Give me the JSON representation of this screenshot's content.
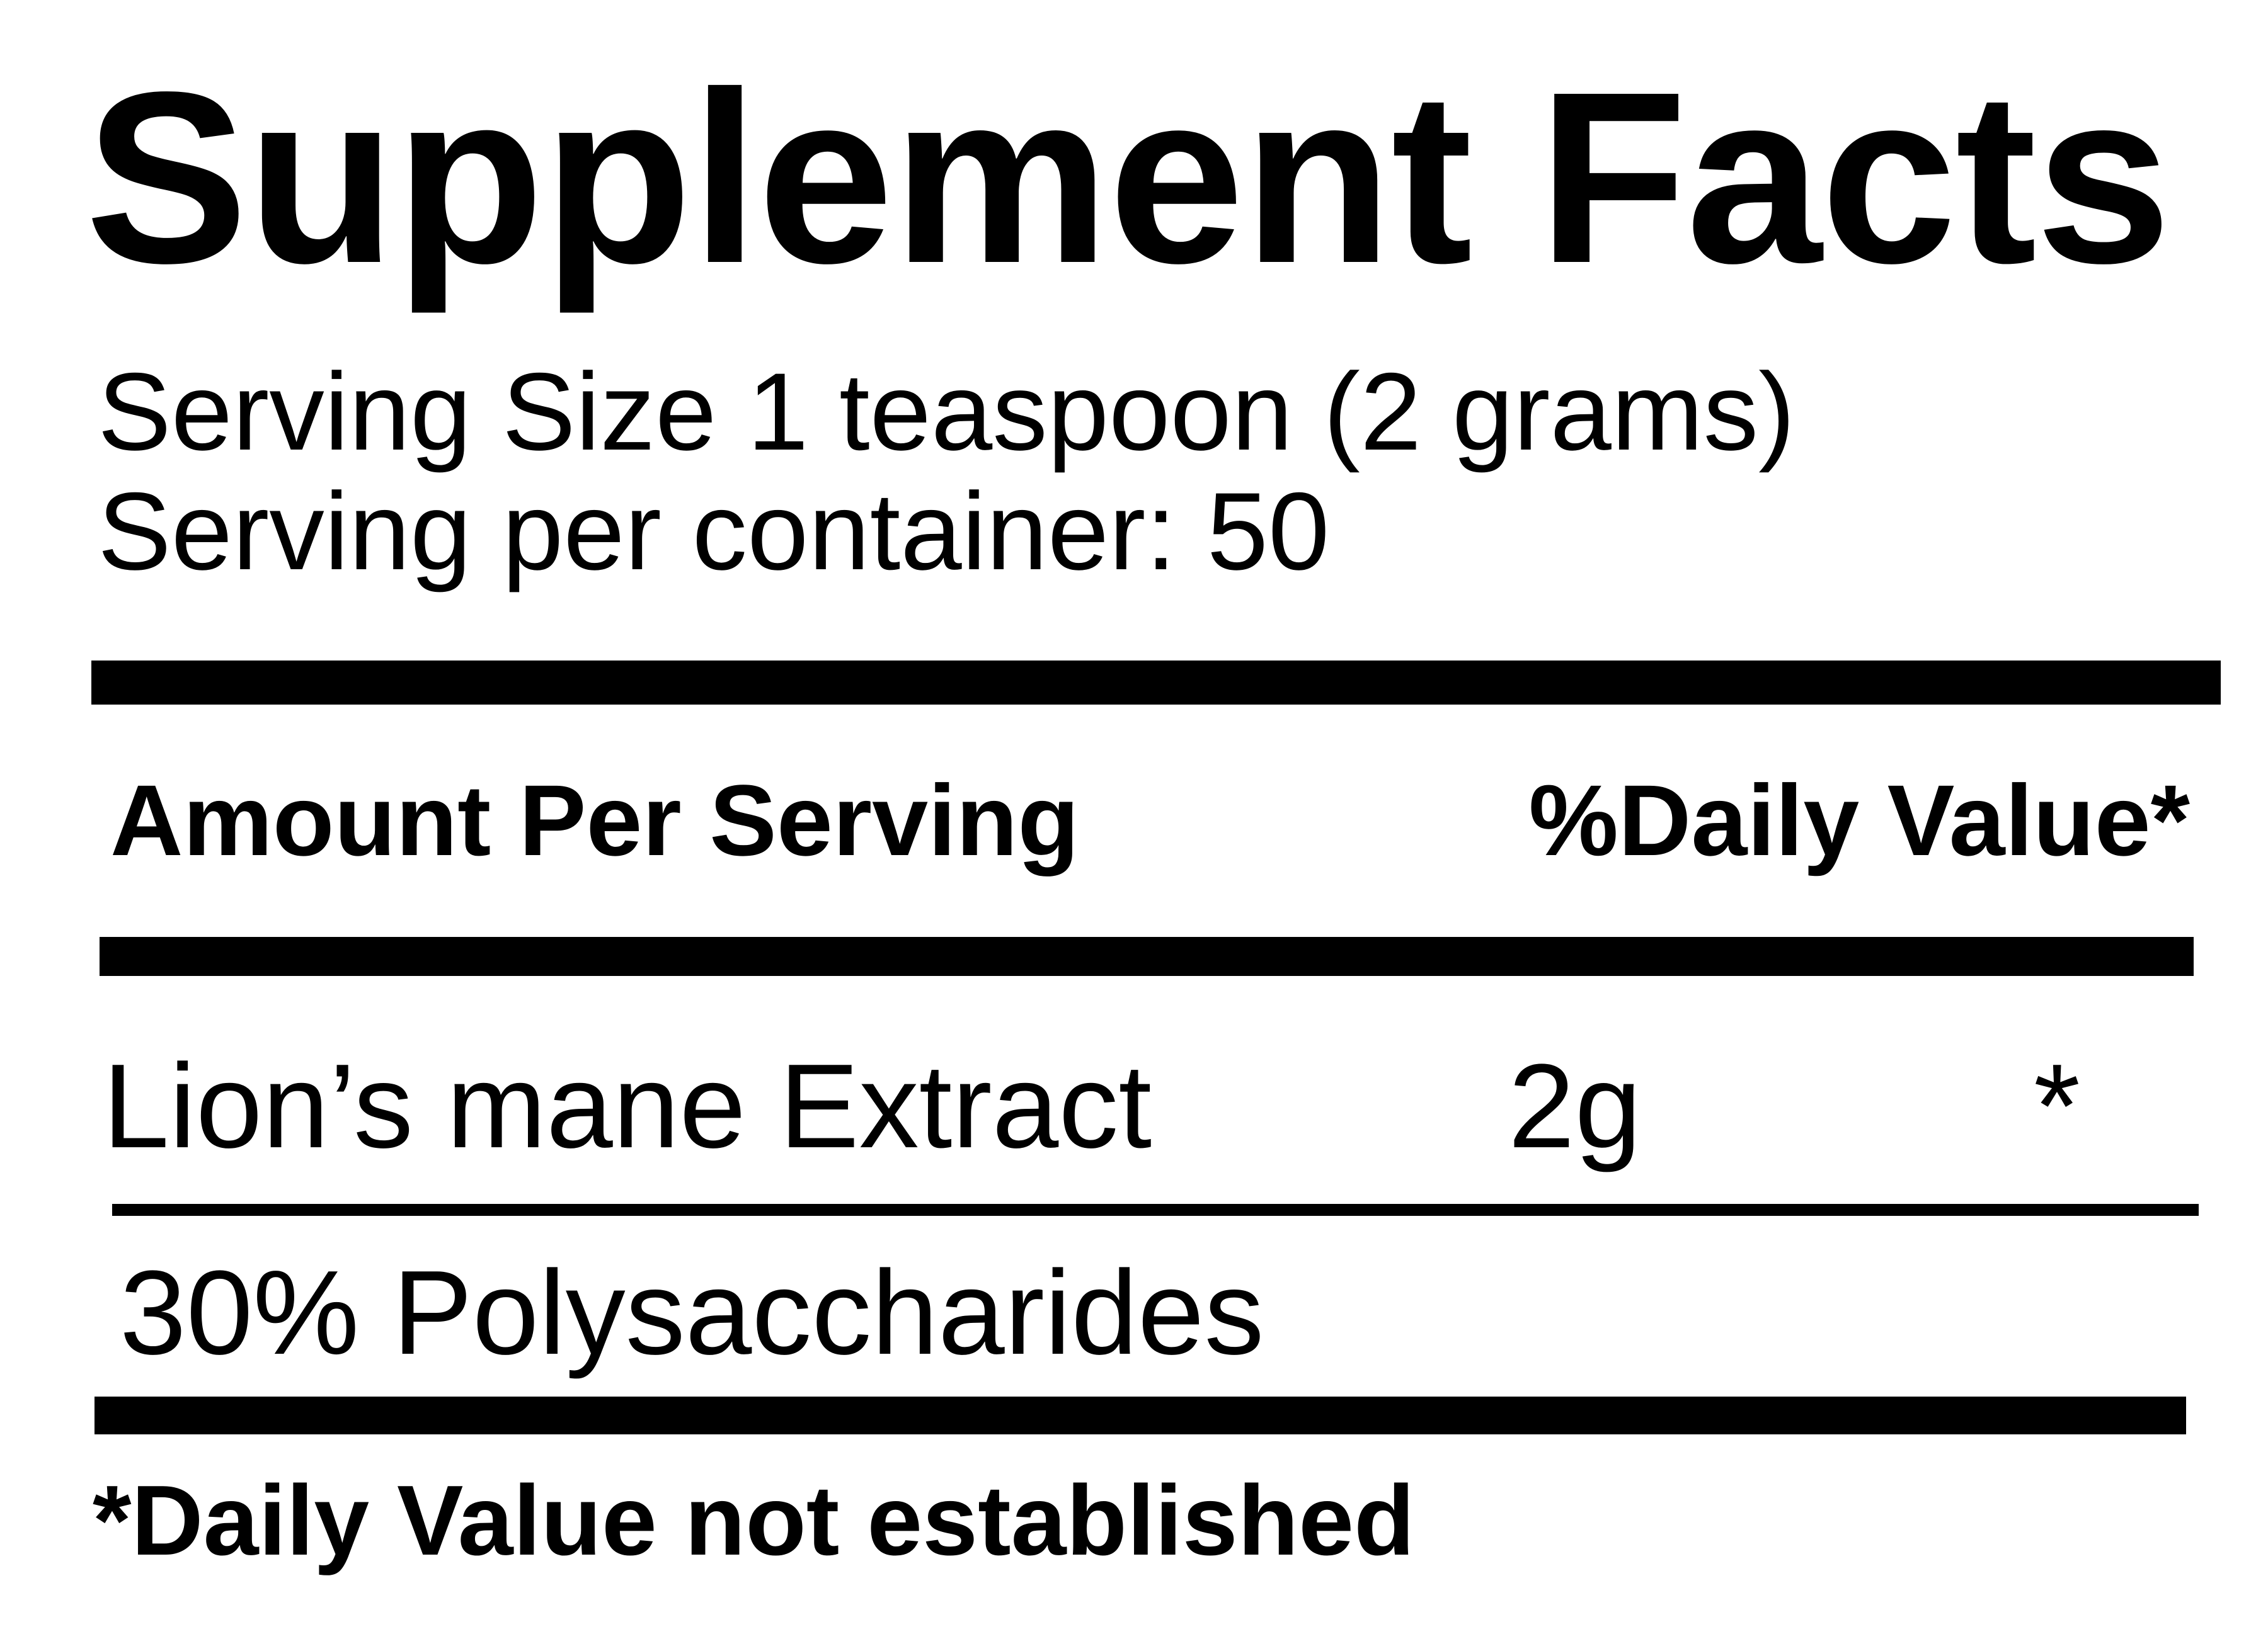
{
  "page": {
    "background_color": "#ffffff",
    "ink_color": "#000000"
  },
  "label": {
    "title": "Supplement Facts",
    "serving": {
      "size_line": "Serving Size 1 teaspoon (2 grams)",
      "per_container_line": "Serving per container: 50"
    },
    "header": {
      "amount_col": "Amount Per Serving",
      "daily_value_col": "%Daily Value*"
    },
    "rows": [
      {
        "name": "Lion’s mane Extract",
        "amount": "2g",
        "daily_value": "*",
        "standardization": "30% Polysaccharides"
      }
    ],
    "footnote": "*Daily Value not established"
  }
}
